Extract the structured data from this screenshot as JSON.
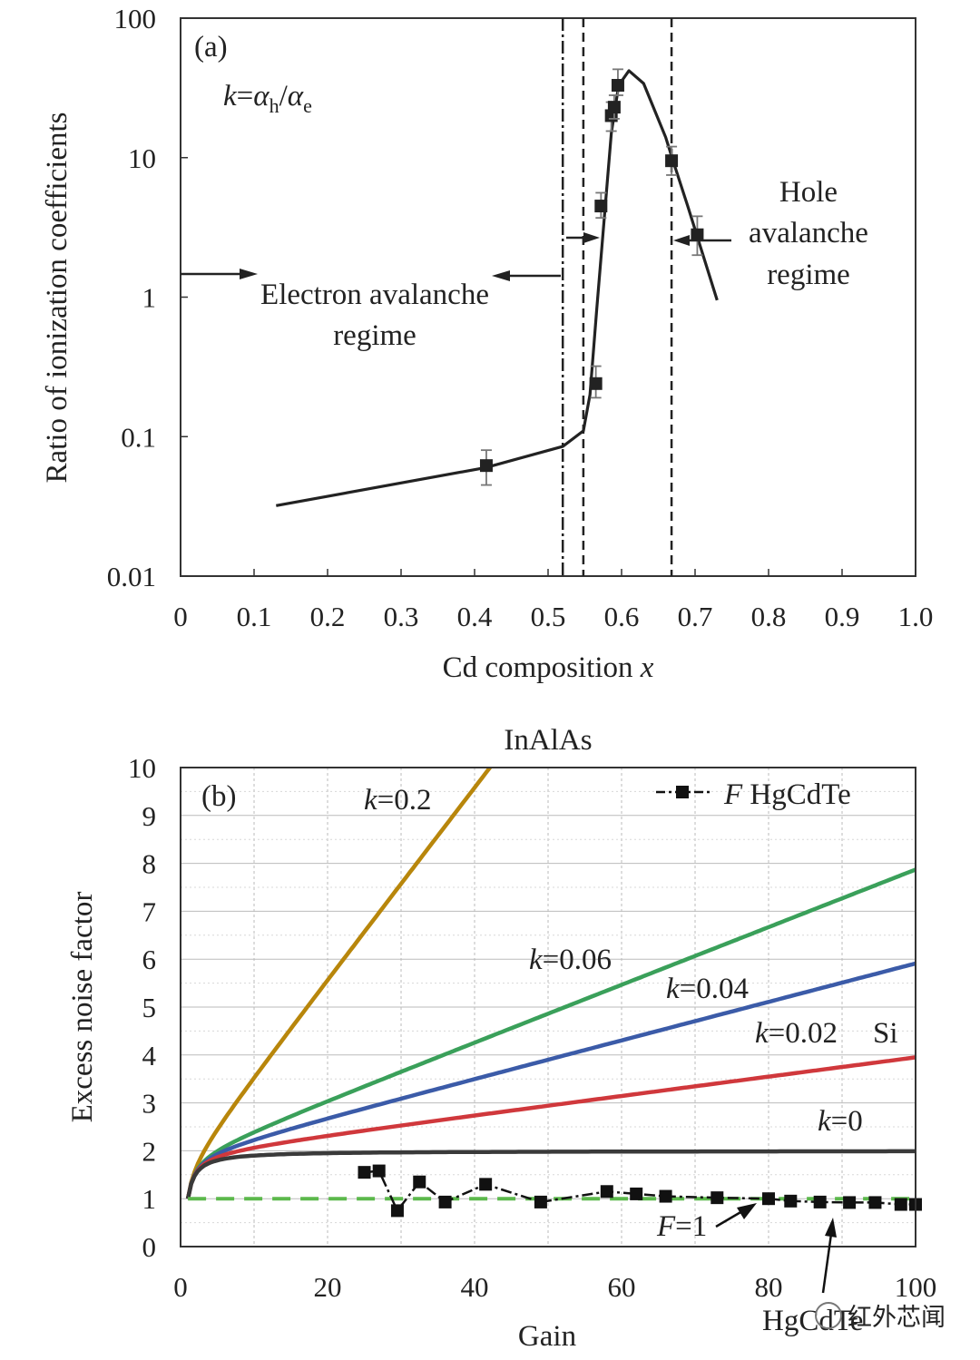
{
  "chart_data": [
    {
      "panel": "(a)",
      "type": "line",
      "formula": {
        "k": "k",
        "eq": "=",
        "alpha": "α",
        "h": "h",
        "slash": "/",
        "e": "e"
      },
      "xlabel": "Cd composition",
      "xlabel_var": "x",
      "ylabel": "Ratio of ionization coefficients",
      "xlim": [
        0,
        1.0
      ],
      "ylim": [
        0.01,
        100
      ],
      "yscale": "log",
      "x_ticks": [
        "0",
        "0.1",
        "0.2",
        "0.3",
        "0.4",
        "0.5",
        "0.6",
        "0.7",
        "0.8",
        "0.9",
        "1.0"
      ],
      "y_ticks": [
        "0.01",
        "0.1",
        "1",
        "10",
        "100"
      ],
      "curve": {
        "x": [
          0.13,
          0.415,
          0.52,
          0.548,
          0.557,
          0.566,
          0.575,
          0.586,
          0.596,
          0.61,
          0.63,
          0.66,
          0.67,
          0.69,
          0.73
        ],
        "y": [
          0.032,
          0.06,
          0.085,
          0.11,
          0.2,
          0.8,
          3.0,
          15,
          33,
          42,
          34,
          14,
          9.5,
          4.5,
          0.95
        ]
      },
      "points": [
        {
          "x": 0.416,
          "y": 0.062,
          "lo": 0.045,
          "hi": 0.08
        },
        {
          "x": 0.565,
          "y": 0.24,
          "lo": 0.19,
          "hi": 0.32
        },
        {
          "x": 0.572,
          "y": 4.5,
          "lo": 3.7,
          "hi": 5.6
        },
        {
          "x": 0.586,
          "y": 20,
          "lo": 15.5,
          "hi": 25
        },
        {
          "x": 0.59,
          "y": 23,
          "lo": 19,
          "hi": 28
        },
        {
          "x": 0.595,
          "y": 33,
          "lo": 28,
          "hi": 43
        },
        {
          "x": 0.668,
          "y": 9.5,
          "lo": 7.5,
          "hi": 12
        },
        {
          "x": 0.703,
          "y": 2.8,
          "lo": 2.0,
          "hi": 3.8
        }
      ],
      "vlines": [
        {
          "x": 0.52,
          "style": "dash-dot"
        },
        {
          "x": 0.548,
          "style": "dashed"
        },
        {
          "x": 0.668,
          "style": "dashed"
        }
      ],
      "annotations": {
        "electron_line1": "Electron avalanche",
        "electron_line2": "regime",
        "hole_line1": "Hole",
        "hole_line2": "avalanche",
        "hole_line3": "regime"
      }
    },
    {
      "panel": "(b)",
      "type": "line",
      "title": "InAlAs",
      "xlabel": "Gain",
      "ylabel": "Excess noise factor",
      "xlim": [
        0,
        100
      ],
      "ylim": [
        0,
        10
      ],
      "grid": true,
      "x_ticks": [
        "0",
        "20",
        "40",
        "60",
        "80",
        "100"
      ],
      "y_ticks": [
        "0",
        "1",
        "2",
        "3",
        "4",
        "5",
        "6",
        "7",
        "8",
        "9",
        "10"
      ],
      "series": [
        {
          "name": "k=0.2",
          "k_label": "k",
          "value_label": "=0.2",
          "k": 0.2,
          "color": "#b8860b"
        },
        {
          "name": "k=0.06",
          "k_label": "k",
          "value_label": "=0.06",
          "k": 0.06,
          "color": "#3aa05a"
        },
        {
          "name": "k=0.04",
          "k_label": "k",
          "value_label": "=0.04",
          "k": 0.04,
          "color": "#3b5ba8"
        },
        {
          "name": "k=0.02",
          "k_label": "k",
          "value_label": "=0.02",
          "k": 0.02,
          "color": "#d0383c"
        },
        {
          "name": "k=0",
          "k_label": "k",
          "value_label": "=0",
          "k": 0,
          "color": "#3a3a3a"
        }
      ],
      "si_label": "Si",
      "reference_line": {
        "name": "F=1",
        "f_label": "F",
        "value_label": "=1",
        "y": 1,
        "color": "#5cb84c"
      },
      "hgcdte": {
        "legend_f": "F",
        "legend_label": " HgCdTe",
        "arrow_label": "HgCdTe",
        "x": [
          25,
          27,
          29.5,
          32.5,
          36,
          41.5,
          49,
          58,
          62,
          66,
          73,
          80,
          83,
          87,
          91,
          94.5,
          98,
          100
        ],
        "y": [
          1.55,
          1.58,
          0.75,
          1.35,
          0.93,
          1.3,
          0.93,
          1.15,
          1.1,
          1.05,
          1.02,
          1.0,
          0.95,
          0.93,
          0.92,
          0.92,
          0.88,
          0.88
        ]
      }
    }
  ],
  "watermark": "红外芯闻"
}
